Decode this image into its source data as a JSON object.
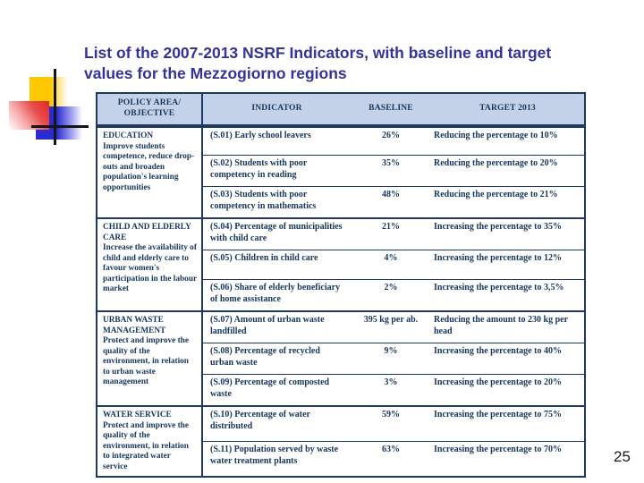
{
  "slide": {
    "title": "List of the 2007-2013 NSRF Indicators, with baseline and target values for the Mezzogiorno regions",
    "page_number": "25"
  },
  "table": {
    "headers": [
      "POLICY AREA/ OBJECTIVE",
      "INDICATOR",
      "BASELINE",
      "TARGET 2013"
    ],
    "sections": [
      {
        "policy_area": "EDUCATION",
        "objective": "Improve students competence, reduce drop-outs and broaden population's learning opportunities",
        "rows": [
          {
            "indicator": "(S.01) Early school leavers",
            "baseline": "26%",
            "target": "Reducing the percentage to 10%"
          },
          {
            "indicator": "(S.02) Students with poor competency in reading",
            "baseline": "35%",
            "target": "Reducing the percentage to 20%"
          },
          {
            "indicator": "(S.03) Students with poor competency in mathematics",
            "baseline": "48%",
            "target": "Reducing the percentage to 21%"
          }
        ]
      },
      {
        "policy_area": "CHILD AND ELDERLY CARE",
        "objective": "Increase the availability of child and elderly care to favour women's participation in the labour market",
        "rows": [
          {
            "indicator": "(S.04) Percentage of municipalities with child care",
            "baseline": "21%",
            "target": "Increasing the percentage to 35%"
          },
          {
            "indicator": "(S.05) Children in child care",
            "baseline": "4%",
            "target": "Increasing the percentage to 12%"
          },
          {
            "indicator": "(S.06) Share of elderly beneficiary of home assistance",
            "baseline": "2%",
            "target": "Increasing the percentage to 3,5%"
          }
        ]
      },
      {
        "policy_area": "URBAN WASTE MANAGEMENT",
        "objective": "Protect and improve the quality of the environment, in relation to urban waste management",
        "rows": [
          {
            "indicator": "(S.07) Amount of urban waste landfilled",
            "baseline": "395 kg per ab.",
            "target": "Reducing the amount to 230 kg per head"
          },
          {
            "indicator": "(S.08) Percentage of recycled urban waste",
            "baseline": "9%",
            "target": "Increasing the percentage to 40%"
          },
          {
            "indicator": "(S.09) Percentage of composted waste",
            "baseline": "3%",
            "target": "Increasing the percentage to 20%"
          }
        ]
      },
      {
        "policy_area": "WATER SERVICE",
        "objective": "Protect and improve the quality of the environment, in relation to integrated water service",
        "rows": [
          {
            "indicator": "(S.10) Percentage of water distributed",
            "baseline": "59%",
            "target": "Increasing the percentage to 75%"
          },
          {
            "indicator": "(S.11) Population served by waste water treatment plants",
            "baseline": "63%",
            "target": "Increasing the percentage to 70%"
          }
        ]
      }
    ]
  },
  "colors": {
    "title_text": "#333399",
    "table_border": "#203864",
    "header_background": "#c3d2e8",
    "table_text": "#16365c",
    "decoration_yellow": "#ffc800",
    "decoration_red": "#e02525",
    "decoration_blue": "#2b2bd0",
    "decoration_lines": "#151515"
  }
}
